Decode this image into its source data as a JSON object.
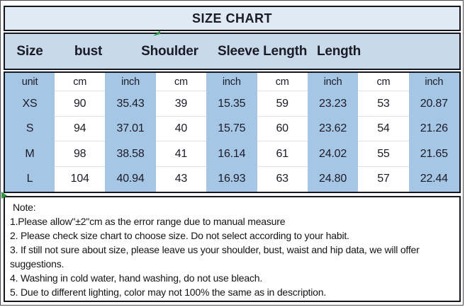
{
  "title_bar": {
    "title": "SIZE CHART"
  },
  "size_table": {
    "column_headers": [
      "Size",
      "bust",
      "Shoulder",
      "Sleeve Length",
      "Length"
    ],
    "unit_row": [
      "unit",
      "cm",
      "inch",
      "cm",
      "inch",
      "cm",
      "inch",
      "cm",
      "inch"
    ],
    "rows": [
      [
        "XS",
        "90",
        "35.43",
        "39",
        "15.35",
        "59",
        "23.23",
        "53",
        "20.87"
      ],
      [
        "S",
        "94",
        "37.01",
        "40",
        "15.75",
        "60",
        "23.62",
        "54",
        "21.26"
      ],
      [
        "M",
        "98",
        "38.58",
        "41",
        "16.14",
        "61",
        "24.02",
        "55",
        "21.65"
      ],
      [
        "L",
        "104",
        "40.94",
        "43",
        "16.93",
        "63",
        "24.80",
        "57",
        "22.44"
      ]
    ]
  },
  "notes": {
    "heading": "Note:",
    "items": [
      "1.Please allow\"±2\"cm as the error range due to manual measure",
      "2. Please check size chart to choose size. Do not select according to your habit.",
      "3. If still not sure about size, please leave us your shoulder, bust, waist and hip data, we will offer suggestions.",
      "4. Washing in cold water, hand washing, do not use bleach.",
      "5. Due to different lighting, color may not 100% the same as in description."
    ]
  },
  "icons": {
    "cursor_marker": "small-green-arrow",
    "corner_marker": "green-corner-triangle"
  },
  "colors": {
    "title_band": "#dfeaf4",
    "header_band": "#c7d9ea",
    "stripe_blue": "#a6c6e5",
    "stripe_white": "#ffffff",
    "box_border": "#16161f",
    "text": "#1b1b26",
    "marker_green": "#2e9440"
  }
}
